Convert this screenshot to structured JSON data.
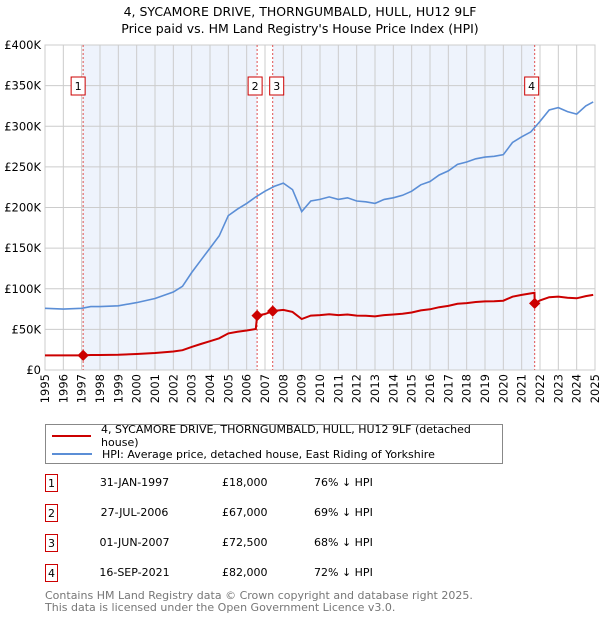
{
  "title": "4, SYCAMORE DRIVE, THORNGUMBALD, HULL, HU12 9LF",
  "subtitle": "Price paid vs. HM Land Registry's House Price Index (HPI)",
  "chart_data": {
    "type": "line",
    "xlim": [
      1995,
      2025
    ],
    "ylim": [
      0,
      400000
    ],
    "x_ticks": [
      "1995",
      "1996",
      "1997",
      "1998",
      "1999",
      "2000",
      "2001",
      "2002",
      "2003",
      "2004",
      "2005",
      "2006",
      "2007",
      "2008",
      "2009",
      "2010",
      "2011",
      "2012",
      "2013",
      "2014",
      "2015",
      "2016",
      "2017",
      "2018",
      "2019",
      "2020",
      "2021",
      "2022",
      "2023",
      "2024",
      "2025"
    ],
    "y_ticks": [
      {
        "v": 0,
        "label": "£0"
      },
      {
        "v": 50000,
        "label": "£50K"
      },
      {
        "v": 100000,
        "label": "£100K"
      },
      {
        "v": 150000,
        "label": "£150K"
      },
      {
        "v": 200000,
        "label": "£200K"
      },
      {
        "v": 250000,
        "label": "£250K"
      },
      {
        "v": 300000,
        "label": "£300K"
      },
      {
        "v": 350000,
        "label": "£350K"
      },
      {
        "v": 400000,
        "label": "£400K"
      }
    ],
    "series": [
      {
        "name": "4, SYCAMORE DRIVE, THORNGUMBALD, HULL, HU12 9LF (detached house)",
        "color": "#cc0000",
        "x": [
          1995,
          1997.08,
          1997.5,
          1998,
          1999,
          2000,
          2001,
          2002,
          2002.5,
          2003,
          2003.5,
          2004,
          2004.5,
          2005,
          2005.5,
          2006,
          2006.5,
          2006.57,
          2007,
          2007.42,
          2007.5,
          2008,
          2008.5,
          2009,
          2009.5,
          2010,
          2010.5,
          2011,
          2011.5,
          2012,
          2012.5,
          2013,
          2013.5,
          2014,
          2014.5,
          2015,
          2015.5,
          2016,
          2016.5,
          2017,
          2017.5,
          2018,
          2018.5,
          2019,
          2019.5,
          2020,
          2020.5,
          2021,
          2021.5,
          2021.7,
          2021.71,
          2022,
          2022.5,
          2023,
          2023.5,
          2024,
          2024.5,
          2024.9
        ],
        "y": [
          18000,
          18000,
          18500,
          18500,
          18700,
          19700,
          20900,
          22800,
          24400,
          28400,
          32000,
          35500,
          39000,
          45000,
          47000,
          48600,
          50500,
          67000,
          68900,
          72500,
          72800,
          74000,
          71500,
          62800,
          67000,
          67600,
          68600,
          67600,
          68300,
          67000,
          66700,
          66000,
          67600,
          68300,
          69200,
          70800,
          73400,
          74700,
          77300,
          78900,
          81500,
          82400,
          83700,
          84400,
          84700,
          85300,
          90200,
          92400,
          94300,
          95000,
          82000,
          85700,
          89600,
          90400,
          89000,
          88200,
          91000,
          92400
        ]
      },
      {
        "name": "HPI: Average price, detached house, East Riding of Yorkshire",
        "color": "#5b8ed6",
        "x": [
          1995,
          1996,
          1997,
          1997.5,
          1998,
          1999,
          2000,
          2001,
          2002,
          2002.5,
          2003,
          2003.5,
          2004,
          2004.5,
          2005,
          2005.5,
          2006,
          2006.5,
          2007,
          2007.5,
          2008,
          2008.5,
          2009,
          2009.5,
          2010,
          2010.5,
          2011,
          2011.5,
          2012,
          2012.5,
          2013,
          2013.5,
          2014,
          2014.5,
          2015,
          2015.5,
          2016,
          2016.5,
          2017,
          2017.5,
          2018,
          2018.5,
          2019,
          2019.5,
          2020,
          2020.5,
          2021,
          2021.5,
          2022,
          2022.5,
          2023,
          2023.5,
          2024,
          2024.5,
          2024.9
        ],
        "y": [
          76000,
          75000,
          76000,
          78000,
          78000,
          79000,
          83000,
          88000,
          96000,
          103000,
          120000,
          135000,
          150000,
          165000,
          190000,
          198000,
          205000,
          213000,
          220000,
          226000,
          230000,
          222000,
          195000,
          208000,
          210000,
          213000,
          210000,
          212000,
          208000,
          207000,
          205000,
          210000,
          212000,
          215000,
          220000,
          228000,
          232000,
          240000,
          245000,
          253000,
          256000,
          260000,
          262000,
          263000,
          265000,
          280000,
          287000,
          293000,
          306000,
          320000,
          323000,
          318000,
          315000,
          325000,
          330000
        ]
      }
    ],
    "sales": [
      {
        "n": "1",
        "x": 1997.08,
        "date": "31-JAN-1997",
        "price": 18000,
        "price_label": "£18,000",
        "hpi": "76% ↓ HPI"
      },
      {
        "n": "2",
        "x": 2006.57,
        "date": "27-JUL-2006",
        "price": 67000,
        "price_label": "£67,000",
        "hpi": "69% ↓ HPI"
      },
      {
        "n": "3",
        "x": 2007.42,
        "date": "01-JUN-2007",
        "price": 72500,
        "price_label": "£72,500",
        "hpi": "68% ↓ HPI"
      },
      {
        "n": "4",
        "x": 2021.71,
        "date": "16-SEP-2021",
        "price": 82000,
        "price_label": "£82,000",
        "hpi": "72% ↓ HPI"
      }
    ],
    "shaded_ranges": [
      [
        1997.08,
        2006.57
      ],
      [
        2007.42,
        2021.71
      ]
    ],
    "legend_placement": "below"
  },
  "legend": {
    "property": "4, SYCAMORE DRIVE, THORNGUMBALD, HULL, HU12 9LF (detached house)",
    "hpi": "HPI: Average price, detached house, East Riding of Yorkshire"
  },
  "footer": {
    "line1": "Contains HM Land Registry data © Crown copyright and database right 2025.",
    "line2": "This data is licensed under the Open Government Licence v3.0."
  }
}
